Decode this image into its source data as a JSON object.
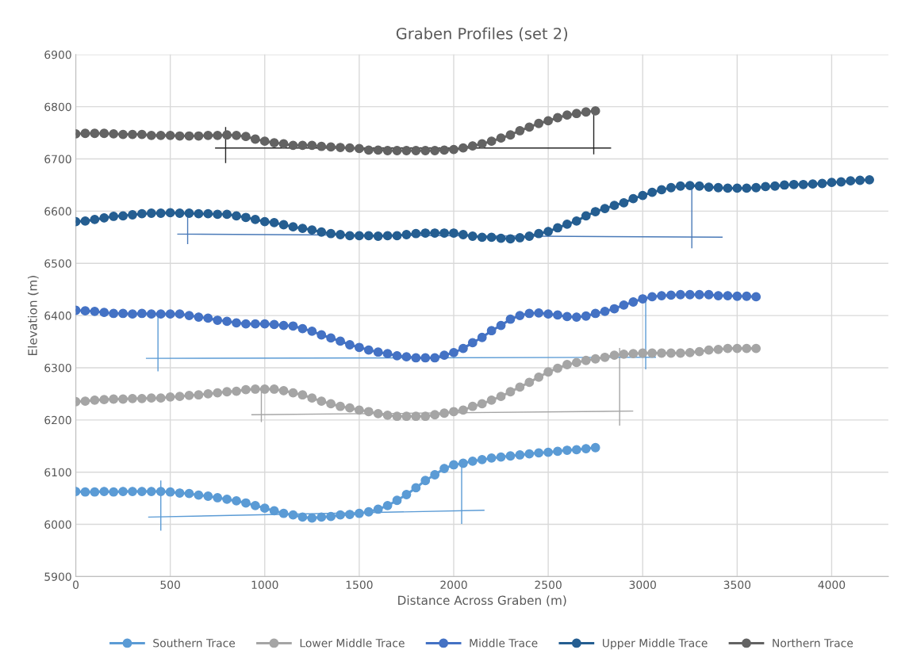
{
  "chart_data": {
    "type": "line",
    "title": "Graben Profiles (set 2)",
    "xlabel": "Distance Across Graben (m)",
    "ylabel": "Elevation (m)",
    "xlim": [
      0,
      4300
    ],
    "xticks": [
      0,
      500,
      1000,
      1500,
      2000,
      2500,
      3000,
      3500,
      4000
    ],
    "ylim": [
      5900,
      6900
    ],
    "yticks": [
      5900,
      6000,
      6100,
      6200,
      6300,
      6400,
      6500,
      6600,
      6700,
      6800,
      6900
    ],
    "grid": true,
    "legend": "bottom",
    "marker": "circle",
    "line_style": "solid",
    "series": [
      {
        "name": "Southern Trace",
        "color": "#5b9bd5",
        "x": [
          0,
          50,
          100,
          150,
          200,
          250,
          300,
          350,
          400,
          450,
          500,
          550,
          600,
          650,
          700,
          750,
          800,
          850,
          900,
          950,
          1000,
          1050,
          1100,
          1150,
          1200,
          1250,
          1300,
          1350,
          1400,
          1450,
          1500,
          1550,
          1600,
          1650,
          1700,
          1750,
          1800,
          1850,
          1900,
          1950,
          2000,
          2050,
          2100,
          2150,
          2200,
          2250,
          2300,
          2350,
          2400,
          2450,
          2500,
          2550,
          2600,
          2650,
          2700,
          2750
        ],
        "values": [
          6063,
          6062,
          6062,
          6063,
          6062,
          6063,
          6063,
          6063,
          6063,
          6063,
          6062,
          6060,
          6059,
          6056,
          6054,
          6051,
          6048,
          6045,
          6041,
          6036,
          6031,
          6026,
          6021,
          6018,
          6014,
          6012,
          6014,
          6015,
          6018,
          6019,
          6021,
          6024,
          6029,
          6036,
          6046,
          6057,
          6070,
          6084,
          6095,
          6107,
          6114,
          6117,
          6121,
          6124,
          6127,
          6129,
          6131,
          6133,
          6135,
          6137,
          6138,
          6140,
          6142,
          6143,
          6145,
          6147
        ]
      },
      {
        "name": "Lower Middle Trace",
        "color": "#a5a5a5",
        "x": [
          0,
          50,
          100,
          150,
          200,
          250,
          300,
          350,
          400,
          450,
          500,
          550,
          600,
          650,
          700,
          750,
          800,
          850,
          900,
          950,
          1000,
          1050,
          1100,
          1150,
          1200,
          1250,
          1300,
          1350,
          1400,
          1450,
          1500,
          1550,
          1600,
          1650,
          1700,
          1750,
          1800,
          1850,
          1900,
          1950,
          2000,
          2050,
          2100,
          2150,
          2200,
          2250,
          2300,
          2350,
          2400,
          2450,
          2500,
          2550,
          2600,
          2650,
          2700,
          2750,
          2800,
          2850,
          2900,
          2950,
          3000,
          3050,
          3100,
          3150,
          3200,
          3250,
          3300,
          3350,
          3400,
          3450,
          3500,
          3550,
          3600
        ],
        "values": [
          6235,
          6236,
          6238,
          6239,
          6240,
          6240,
          6241,
          6241,
          6242,
          6242,
          6244,
          6245,
          6247,
          6248,
          6250,
          6252,
          6254,
          6255,
          6258,
          6259,
          6259,
          6259,
          6256,
          6252,
          6248,
          6242,
          6236,
          6231,
          6226,
          6223,
          6219,
          6216,
          6212,
          6209,
          6207,
          6207,
          6207,
          6207,
          6210,
          6213,
          6216,
          6219,
          6226,
          6231,
          6238,
          6245,
          6254,
          6263,
          6272,
          6282,
          6292,
          6299,
          6306,
          6310,
          6314,
          6317,
          6320,
          6324,
          6326,
          6327,
          6328,
          6328,
          6328,
          6328,
          6328,
          6329,
          6331,
          6334,
          6335,
          6337,
          6337,
          6337,
          6337
        ]
      },
      {
        "name": "Middle Trace",
        "color": "#4472c4",
        "x": [
          0,
          50,
          100,
          150,
          200,
          250,
          300,
          350,
          400,
          450,
          500,
          550,
          600,
          650,
          700,
          750,
          800,
          850,
          900,
          950,
          1000,
          1050,
          1100,
          1150,
          1200,
          1250,
          1300,
          1350,
          1400,
          1450,
          1500,
          1550,
          1600,
          1650,
          1700,
          1750,
          1800,
          1850,
          1900,
          1950,
          2000,
          2050,
          2100,
          2150,
          2200,
          2250,
          2300,
          2350,
          2400,
          2450,
          2500,
          2550,
          2600,
          2650,
          2700,
          2750,
          2800,
          2850,
          2900,
          2950,
          3000,
          3050,
          3100,
          3150,
          3200,
          3250,
          3300,
          3350,
          3400,
          3450,
          3500,
          3550,
          3600
        ],
        "values": [
          6410,
          6409,
          6408,
          6406,
          6404,
          6404,
          6403,
          6404,
          6403,
          6403,
          6403,
          6403,
          6400,
          6397,
          6395,
          6391,
          6389,
          6386,
          6384,
          6384,
          6384,
          6383,
          6381,
          6380,
          6375,
          6370,
          6363,
          6357,
          6351,
          6344,
          6339,
          6334,
          6330,
          6327,
          6323,
          6321,
          6319,
          6319,
          6319,
          6324,
          6329,
          6337,
          6348,
          6358,
          6371,
          6381,
          6393,
          6400,
          6404,
          6405,
          6403,
          6401,
          6398,
          6397,
          6399,
          6404,
          6408,
          6413,
          6420,
          6426,
          6432,
          6436,
          6438,
          6439,
          6440,
          6440,
          6440,
          6440,
          6438,
          6438,
          6437,
          6437,
          6436
        ]
      },
      {
        "name": "Upper Middle Trace",
        "color": "#255e91",
        "x": [
          0,
          50,
          100,
          150,
          200,
          250,
          300,
          350,
          400,
          450,
          500,
          550,
          600,
          650,
          700,
          750,
          800,
          850,
          900,
          950,
          1000,
          1050,
          1100,
          1150,
          1200,
          1250,
          1300,
          1350,
          1400,
          1450,
          1500,
          1550,
          1600,
          1650,
          1700,
          1750,
          1800,
          1850,
          1900,
          1950,
          2000,
          2050,
          2100,
          2150,
          2200,
          2250,
          2300,
          2350,
          2400,
          2450,
          2500,
          2550,
          2600,
          2650,
          2700,
          2750,
          2800,
          2850,
          2900,
          2950,
          3000,
          3050,
          3100,
          3150,
          3200,
          3250,
          3300,
          3350,
          3400,
          3450,
          3500,
          3550,
          3600,
          3650,
          3700,
          3750,
          3800,
          3850,
          3900,
          3950,
          4000,
          4050,
          4100,
          4150,
          4200
        ],
        "values": [
          6580,
          6581,
          6584,
          6587,
          6590,
          6591,
          6593,
          6595,
          6596,
          6596,
          6597,
          6596,
          6596,
          6595,
          6595,
          6594,
          6594,
          6591,
          6588,
          6584,
          6580,
          6578,
          6574,
          6570,
          6567,
          6564,
          6560,
          6557,
          6555,
          6553,
          6553,
          6553,
          6552,
          6553,
          6553,
          6555,
          6557,
          6558,
          6558,
          6558,
          6558,
          6555,
          6552,
          6550,
          6550,
          6548,
          6547,
          6549,
          6552,
          6557,
          6561,
          6568,
          6575,
          6581,
          6591,
          6599,
          6605,
          6611,
          6616,
          6624,
          6630,
          6636,
          6641,
          6645,
          6648,
          6649,
          6648,
          6646,
          6645,
          6644,
          6644,
          6644,
          6645,
          6647,
          6648,
          6650,
          6651,
          6651,
          6652,
          6653,
          6655,
          6656,
          6658,
          6659,
          6660
        ]
      },
      {
        "name": "Northern Trace",
        "color": "#636363",
        "x": [
          0,
          50,
          100,
          150,
          200,
          250,
          300,
          350,
          400,
          450,
          500,
          550,
          600,
          650,
          700,
          750,
          800,
          850,
          900,
          950,
          1000,
          1050,
          1100,
          1150,
          1200,
          1250,
          1300,
          1350,
          1400,
          1450,
          1500,
          1550,
          1600,
          1650,
          1700,
          1750,
          1800,
          1850,
          1900,
          1950,
          2000,
          2050,
          2100,
          2150,
          2200,
          2250,
          2300,
          2350,
          2400,
          2450,
          2500,
          2550,
          2600,
          2650,
          2700,
          2750
        ],
        "values": [
          6748,
          6749,
          6749,
          6749,
          6748,
          6747,
          6747,
          6747,
          6745,
          6745,
          6745,
          6744,
          6744,
          6744,
          6745,
          6745,
          6746,
          6745,
          6743,
          6738,
          6734,
          6731,
          6729,
          6726,
          6726,
          6726,
          6724,
          6723,
          6722,
          6721,
          6720,
          6717,
          6717,
          6716,
          6716,
          6716,
          6716,
          6716,
          6716,
          6717,
          6718,
          6721,
          6725,
          6729,
          6734,
          6740,
          6746,
          6754,
          6761,
          6768,
          6773,
          6779,
          6784,
          6787,
          6790,
          6792
        ]
      },
      {
        "type": "line",
        "marker": "none",
        "color": "#5b9bd5",
        "x": [
          386,
          2160
        ],
        "values": [
          6014,
          6027
        ]
      },
      {
        "type": "line",
        "marker": "none",
        "color": "#5b9bd5",
        "x": [
          450,
          450
        ],
        "values": [
          6083,
          5989
        ]
      },
      {
        "type": "line",
        "marker": "none",
        "color": "#5b9bd5",
        "x": [
          2042,
          2042
        ],
        "values": [
          6115,
          6002
        ]
      },
      {
        "type": "line",
        "marker": "none",
        "color": "#a5a5a5",
        "x": [
          932,
          2947
        ],
        "values": [
          6210,
          6217
        ]
      },
      {
        "type": "line",
        "marker": "none",
        "color": "#a5a5a5",
        "x": [
          982,
          982
        ],
        "values": [
          6260,
          6197
        ]
      },
      {
        "type": "line",
        "marker": "none",
        "color": "#a5a5a5",
        "x": [
          2878,
          2878
        ],
        "values": [
          6337,
          6190
        ]
      },
      {
        "type": "line",
        "marker": "none",
        "color": "#5b9bd5",
        "x": [
          374,
          3067
        ],
        "values": [
          6318,
          6320
        ]
      },
      {
        "type": "line",
        "marker": "none",
        "color": "#5b9bd5",
        "x": [
          435,
          435
        ],
        "values": [
          6397,
          6294
        ]
      },
      {
        "type": "line",
        "marker": "none",
        "color": "#5b9bd5",
        "x": [
          3016,
          3016
        ],
        "values": [
          6436,
          6298
        ]
      },
      {
        "type": "line",
        "marker": "none",
        "color": "#4a7ab8",
        "x": [
          540,
          3420
        ],
        "values": [
          6556,
          6550
        ]
      },
      {
        "type": "line",
        "marker": "none",
        "color": "#4a7ab8",
        "x": [
          592,
          592
        ],
        "values": [
          6595,
          6538
        ]
      },
      {
        "type": "line",
        "marker": "none",
        "color": "#4a7ab8",
        "x": [
          3260,
          3260
        ],
        "values": [
          6650,
          6530
        ]
      },
      {
        "type": "line",
        "marker": "none",
        "color": "#262626",
        "x": [
          740,
          2830
        ],
        "values": [
          6721,
          6721
        ]
      },
      {
        "type": "line",
        "marker": "none",
        "color": "#262626",
        "x": [
          793,
          793
        ],
        "values": [
          6760,
          6693
        ]
      },
      {
        "type": "line",
        "marker": "none",
        "color": "#262626",
        "x": [
          2741,
          2741
        ],
        "values": [
          6793,
          6710
        ]
      }
    ]
  }
}
